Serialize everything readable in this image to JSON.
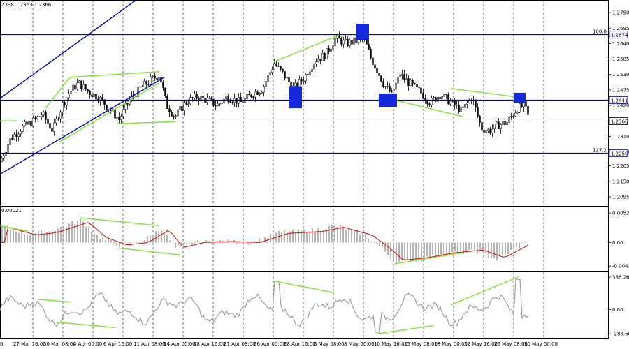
{
  "header": {
    "ohlc_text": "2398 1.2363 1.2366"
  },
  "colors": {
    "background": "#ffffff",
    "candle": "#000000",
    "hline": "#0000cc",
    "trend_green": "#7fe62e",
    "box": "#1428dc",
    "macd_hist": "#b4b4b4",
    "signal": "#e60000",
    "cci": "#a0a0a0",
    "grid": "#000000"
  },
  "chart_data": [
    {
      "type": "candlestick",
      "pane": "price",
      "y_ticks": [
        "1.2750",
        "1.2695",
        "1.2640",
        "1.2585",
        "1.2530",
        "1.2475",
        "1.2420",
        "1.2310",
        "1.2255",
        "1.2205",
        "1.2150",
        "1.2095"
      ],
      "ylim": [
        1.207,
        1.2785
      ],
      "levels": [
        {
          "label": "100.0",
          "value": "1.2674",
          "price": 1.2674
        },
        {
          "label": "",
          "value": "1.2441",
          "price": 1.2441
        },
        {
          "label": "",
          "value": "1.2366",
          "price": 1.2366,
          "current": true
        },
        {
          "label": "127.2",
          "value": "1.2250",
          "price": 1.225
        }
      ]
    },
    {
      "type": "histogram+line",
      "pane": "macd",
      "header_value": "0.00021",
      "y_ticks": [
        "0.00525",
        "0.00",
        "-0.00419"
      ],
      "ylim": [
        -0.0048,
        0.0059
      ]
    },
    {
      "type": "line",
      "pane": "cci",
      "y_ticks": [
        "386.2645",
        "0.00",
        "-288.682"
      ],
      "ylim": [
        -320,
        420
      ]
    }
  ],
  "x_axis": {
    "labels": [
      "0",
      "27 Mar 16:00",
      "30 Mar 08:00",
      "4 Apr 00:00",
      "6 Apr 16:00",
      "11 Apr 08:00",
      "14 Apr 00:00",
      "18 Apr 16:00",
      "21 Apr 08:00",
      "26 Apr 00:00",
      "28 Apr 16:00",
      "3 May 08:00",
      "8 May 00:00",
      "10 May 16:00",
      "15 May 08:00",
      "18 May 00:00",
      "22 May 16:00",
      "25 May 08:00",
      "30 May 00:00"
    ]
  }
}
